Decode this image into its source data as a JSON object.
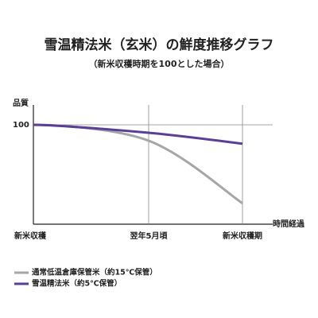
{
  "chart_data": {
    "type": "line",
    "title": "雪温精法米（玄米）の鮮度推移グラフ",
    "subtitle": "（新米収穫時期を100とした場合）",
    "y_label": "品質",
    "x_label": "時間経過",
    "categories": [
      "新米収穫",
      "翌年5月頃",
      "新米収穫期"
    ],
    "ylim": [
      0,
      120
    ],
    "yticks": [
      100
    ],
    "grid": true,
    "series": [
      {
        "name": "通常低温倉庫保管米（約15℃保管）",
        "color": "#a6a6a6",
        "values": [
          100,
          84,
          21
        ]
      },
      {
        "name": "雪温精法米（約5℃保管）",
        "color": "#5b3f96",
        "values": [
          100,
          92,
          81
        ]
      }
    ]
  }
}
